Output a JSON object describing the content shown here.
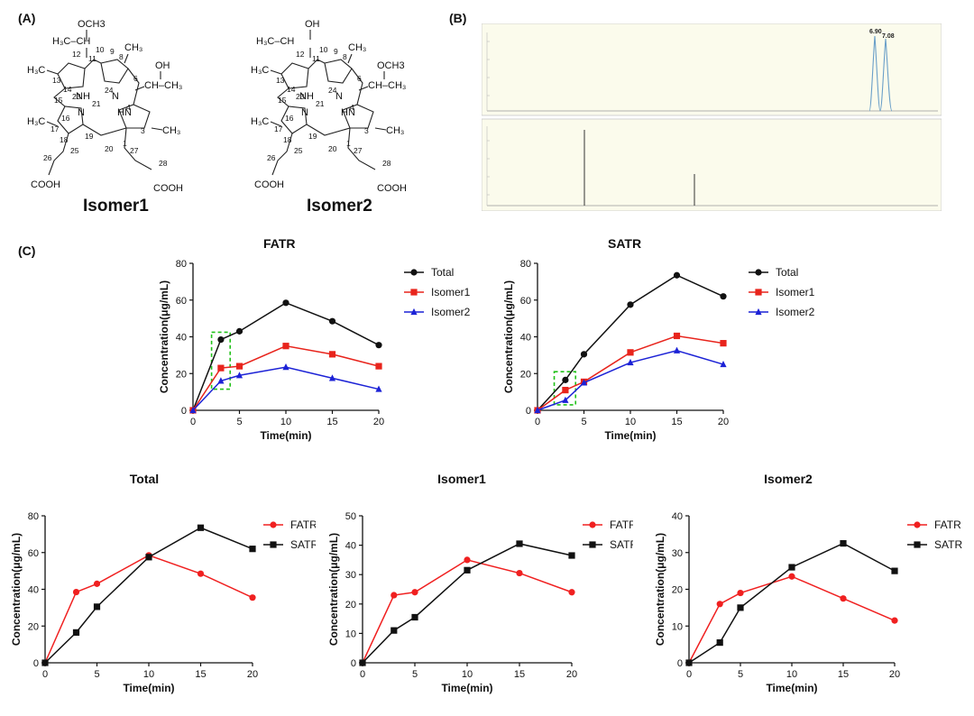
{
  "panel_labels": {
    "a": "(A)",
    "b": "(B)",
    "c": "(C)"
  },
  "isomers": [
    {
      "name": "Isomer1",
      "top_sub": "OCH3",
      "right_sub": "OH"
    },
    {
      "name": "Isomer2",
      "top_sub": "OH",
      "right_sub": "OCH3"
    }
  ],
  "chromatograms": [
    {
      "name": "upper",
      "peaks": [
        {
          "x": 6.9,
          "label": "6.90"
        },
        {
          "x": 7.08,
          "label": "7.08"
        }
      ]
    },
    {
      "name": "lower",
      "peaks": [
        {
          "x": 3.4,
          "label": ""
        },
        {
          "x": 5.7,
          "label": ""
        }
      ]
    }
  ],
  "chart_data": [
    {
      "id": "fatr",
      "type": "line",
      "title": "FATR",
      "xlabel": "Time(min)",
      "ylabel": "Concentration(μg/mL)",
      "x": [
        0,
        3,
        5,
        10,
        15,
        20
      ],
      "xlim": [
        0,
        20
      ],
      "ylim": [
        0,
        80
      ],
      "xticks": [
        0,
        5,
        10,
        15,
        20
      ],
      "yticks": [
        0,
        20,
        40,
        60,
        80
      ],
      "series": [
        {
          "name": "Total",
          "color": "#111111",
          "marker": "circle",
          "values": [
            0,
            38.5,
            43,
            58.5,
            48.5,
            35.5
          ]
        },
        {
          "name": "Isomer1",
          "color": "#e8241c",
          "marker": "square",
          "values": [
            0,
            23,
            24,
            35,
            30.5,
            24
          ]
        },
        {
          "name": "Isomer2",
          "color": "#1c22d6",
          "marker": "triangle",
          "values": [
            0,
            16,
            19,
            23.5,
            17.5,
            11.5
          ]
        }
      ],
      "highlight": {
        "x": [
          2,
          4
        ],
        "y": [
          11.5,
          42.5
        ]
      }
    },
    {
      "id": "satr",
      "type": "line",
      "title": "SATR",
      "xlabel": "Time(min)",
      "ylabel": "Concentration(μg/mL)",
      "x": [
        0,
        3,
        5,
        10,
        15,
        20
      ],
      "xlim": [
        0,
        20
      ],
      "ylim": [
        0,
        80
      ],
      "xticks": [
        0,
        5,
        10,
        15,
        20
      ],
      "yticks": [
        0,
        20,
        40,
        60,
        80
      ],
      "series": [
        {
          "name": "Total",
          "color": "#111111",
          "marker": "circle",
          "values": [
            0,
            16.5,
            30.5,
            57.5,
            73.5,
            62
          ]
        },
        {
          "name": "Isomer1",
          "color": "#e8241c",
          "marker": "square",
          "values": [
            0,
            11,
            15.5,
            31.5,
            40.5,
            36.5
          ]
        },
        {
          "name": "Isomer2",
          "color": "#1c22d6",
          "marker": "triangle",
          "values": [
            0,
            5.5,
            15,
            26,
            32.5,
            25
          ]
        }
      ],
      "highlight": {
        "x": [
          1.8,
          4.1
        ],
        "y": [
          3,
          21
        ]
      }
    },
    {
      "id": "total",
      "type": "line",
      "title": "Total",
      "xlabel": "Time(min)",
      "ylabel": "Concentration(μg/mL)",
      "x": [
        0,
        3,
        5,
        10,
        15,
        20
      ],
      "xlim": [
        0,
        20
      ],
      "ylim": [
        0,
        80
      ],
      "xticks": [
        0,
        5,
        10,
        15,
        20
      ],
      "yticks": [
        0,
        20,
        40,
        60,
        80
      ],
      "series": [
        {
          "name": "FATR",
          "color": "#f02020",
          "marker": "circle",
          "values": [
            0,
            38.5,
            43,
            58.5,
            48.5,
            35.5
          ]
        },
        {
          "name": "SATR",
          "color": "#111111",
          "marker": "square",
          "values": [
            0,
            16.5,
            30.5,
            57.5,
            73.5,
            62
          ]
        }
      ]
    },
    {
      "id": "isomer1",
      "type": "line",
      "title": "Isomer1",
      "xlabel": "Time(min)",
      "ylabel": "Concentration(μg/mL)",
      "x": [
        0,
        3,
        5,
        10,
        15,
        20
      ],
      "xlim": [
        0,
        20
      ],
      "ylim": [
        0,
        50
      ],
      "xticks": [
        0,
        5,
        10,
        15,
        20
      ],
      "yticks": [
        0,
        10,
        20,
        30,
        40,
        50
      ],
      "series": [
        {
          "name": "FATR",
          "color": "#f02020",
          "marker": "circle",
          "values": [
            0,
            23,
            24,
            35,
            30.5,
            24
          ]
        },
        {
          "name": "SATR",
          "color": "#111111",
          "marker": "square",
          "values": [
            0,
            11,
            15.5,
            31.5,
            40.5,
            36.5
          ]
        }
      ]
    },
    {
      "id": "isomer2",
      "type": "line",
      "title": "Isomer2",
      "xlabel": "Time(min)",
      "ylabel": "Concentration(μg/mL)",
      "x": [
        0,
        3,
        5,
        10,
        15,
        20
      ],
      "xlim": [
        0,
        20
      ],
      "ylim": [
        0,
        40
      ],
      "xticks": [
        0,
        5,
        10,
        15,
        20
      ],
      "yticks": [
        0,
        10,
        20,
        30,
        40
      ],
      "series": [
        {
          "name": "FATR",
          "color": "#f02020",
          "marker": "circle",
          "values": [
            0,
            16,
            19,
            23.5,
            17.5,
            11.5
          ]
        },
        {
          "name": "SATR",
          "color": "#111111",
          "marker": "square",
          "values": [
            0,
            5.5,
            15,
            26,
            32.5,
            25
          ]
        }
      ]
    }
  ]
}
